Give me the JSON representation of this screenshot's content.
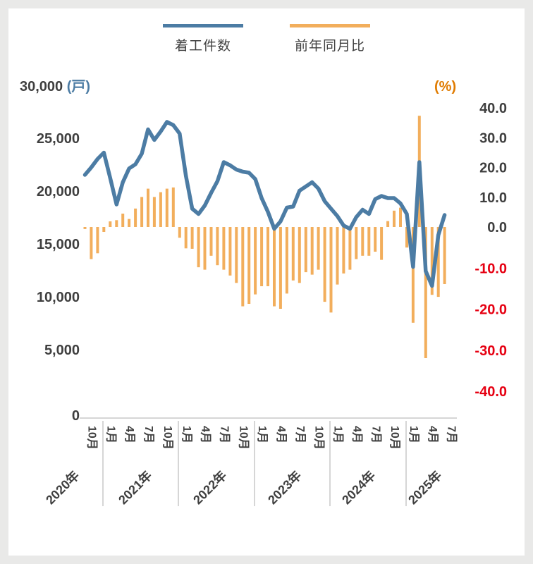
{
  "colors": {
    "line": "#4C7CA4",
    "bar": "#F2AE5C",
    "text": "#3F3F3F",
    "negative_tick": "#E60012",
    "percent_label": "#E07B00",
    "axis_line": "#C9C9C9",
    "panel_bg": "#FFFFFF",
    "page_bg": "#E9E9E8"
  },
  "legend": [
    {
      "label": "着工件数",
      "color": "#4C7CA4"
    },
    {
      "label": "前年同月比",
      "color": "#F2AE5C"
    }
  ],
  "axes": {
    "left": {
      "top_tick": "30,000",
      "unit_label": "(戸)",
      "ticks": [
        "25,000",
        "20,000",
        "15,000",
        "10,000",
        "5,000",
        "0"
      ],
      "tick_values": [
        25000,
        20000,
        15000,
        10000,
        5000,
        0
      ]
    },
    "right": {
      "unit_label": "(%)",
      "ticks": [
        "40.0",
        "30.0",
        "20.0",
        "10.0",
        "0.0",
        "-10.0",
        "-20.0",
        "-30.0",
        "-40.0"
      ],
      "tick_values": [
        40,
        30,
        20,
        10,
        0,
        -10,
        -20,
        -30,
        -40
      ]
    }
  },
  "x_axis": {
    "years": [
      "2020年",
      "2021年",
      "2022年",
      "2023年",
      "2024年",
      "2025年"
    ],
    "month_suffix": "月",
    "labeled_months": [
      1,
      4,
      7,
      10
    ]
  },
  "chart_data": {
    "type": "line+bar",
    "title": "",
    "start_month": "2020-10",
    "end_month": "2025-07",
    "months": [
      "2020-10",
      "2020-11",
      "2020-12",
      "2021-01",
      "2021-02",
      "2021-03",
      "2021-04",
      "2021-05",
      "2021-06",
      "2021-07",
      "2021-08",
      "2021-09",
      "2021-10",
      "2021-11",
      "2021-12",
      "2022-01",
      "2022-02",
      "2022-03",
      "2022-04",
      "2022-05",
      "2022-06",
      "2022-07",
      "2022-08",
      "2022-09",
      "2022-10",
      "2022-11",
      "2022-12",
      "2023-01",
      "2023-02",
      "2023-03",
      "2023-04",
      "2023-05",
      "2023-06",
      "2023-07",
      "2023-08",
      "2023-09",
      "2023-10",
      "2023-11",
      "2023-12",
      "2024-01",
      "2024-02",
      "2024-03",
      "2024-04",
      "2024-05",
      "2024-06",
      "2024-07",
      "2024-08",
      "2024-09",
      "2024-10",
      "2024-11",
      "2024-12",
      "2025-01",
      "2025-02",
      "2025-03",
      "2025-04",
      "2025-05",
      "2025-06",
      "2025-07"
    ],
    "series": [
      {
        "name": "着工件数",
        "type": "line",
        "axis": "left",
        "unit": "戸",
        "values": [
          21600,
          22300,
          23100,
          23700,
          21300,
          18800,
          20900,
          22200,
          22600,
          23600,
          25900,
          24900,
          25700,
          26600,
          26300,
          25500,
          21500,
          18400,
          17900,
          18700,
          19900,
          21000,
          22800,
          22500,
          22100,
          21900,
          21800,
          21200,
          19400,
          18100,
          16500,
          17200,
          18500,
          18600,
          20100,
          20500,
          20900,
          20300,
          19100,
          18400,
          17700,
          16800,
          16500,
          17600,
          18300,
          17900,
          19300,
          19600,
          19400,
          19400,
          18900,
          17900,
          12900,
          22800,
          12500,
          11100,
          15900,
          17800
        ]
      },
      {
        "name": "前年同月比",
        "type": "bar",
        "axis": "right",
        "unit": "%",
        "values": [
          -0.5,
          -7.8,
          -6.4,
          -1.2,
          1.9,
          2.3,
          4.5,
          2.7,
          6.2,
          10.1,
          12.9,
          10.1,
          11.7,
          12.9,
          13.3,
          -2.6,
          -5.2,
          -5.3,
          -9.8,
          -10.4,
          -7.0,
          -9.3,
          -10.4,
          -11.8,
          -13.6,
          -19.3,
          -18.7,
          -16.4,
          -14.4,
          -14.4,
          -19.3,
          -19.9,
          -16.2,
          -13.0,
          -13.6,
          -11.0,
          -11.6,
          -10.4,
          -18.2,
          -20.8,
          -14.0,
          -11.3,
          -10.4,
          -7.8,
          -7.0,
          -7.0,
          -6.0,
          -8.0,
          2.0,
          5.5,
          6.5,
          -5.0,
          -23.3,
          37.4,
          -31.9,
          -16.5,
          -17.0,
          -13.9
        ]
      }
    ],
    "left_ylim": [
      0,
      30000
    ],
    "right_ylim": [
      -40,
      40
    ],
    "grid": "off",
    "legend_position": "top-center"
  }
}
